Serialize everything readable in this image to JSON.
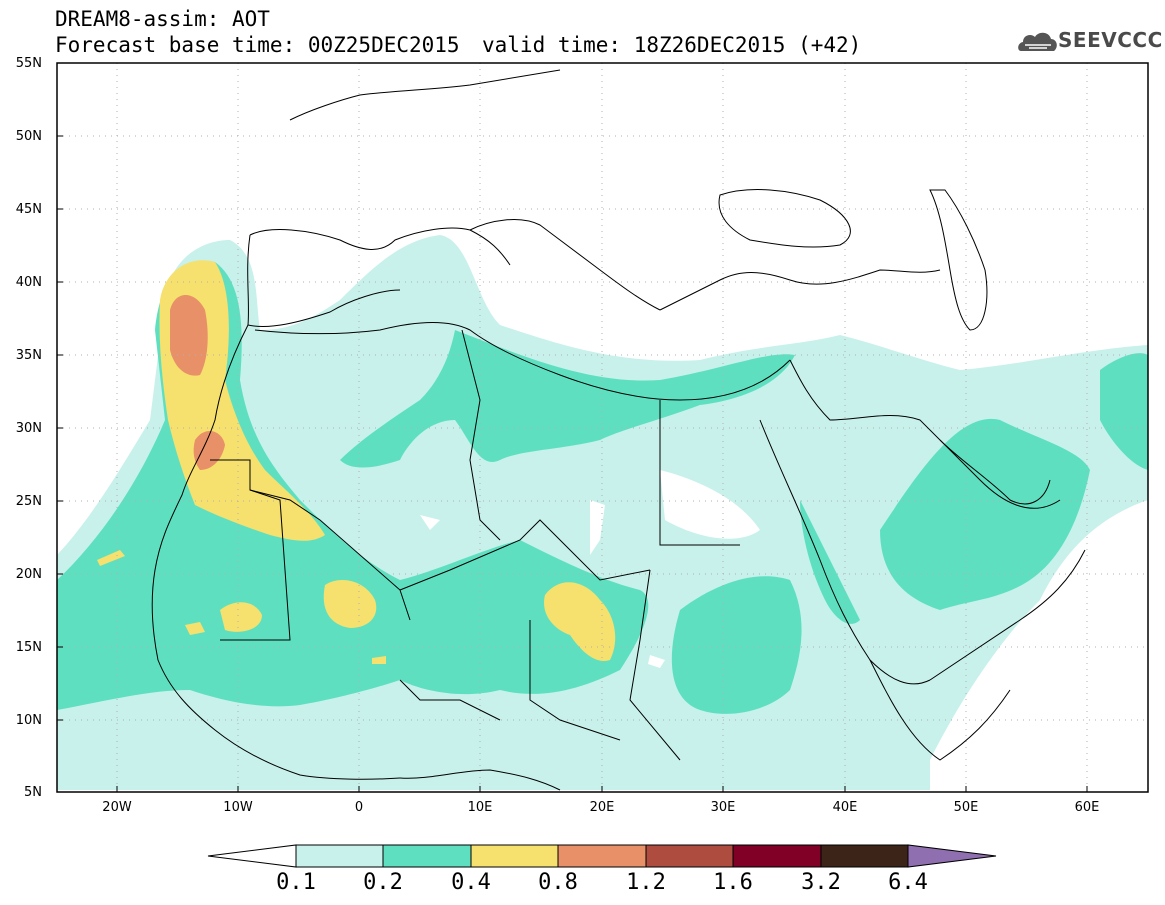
{
  "header": {
    "title_line1": "DREAM8-assim: AOT",
    "title_line2_left": "Forecast base time: 00Z25DEC2015",
    "title_line2_right": "valid time: 18Z26DEC2015 (+42)",
    "logo_text": "SEEVCCC"
  },
  "lat_labels": [
    "55N",
    "50N",
    "45N",
    "40N",
    "35N",
    "30N",
    "25N",
    "20N",
    "15N",
    "10N",
    "5N"
  ],
  "lon_labels": [
    "20W",
    "10W",
    "0",
    "10E",
    "20E",
    "30E",
    "40E",
    "50E",
    "60E"
  ],
  "colorbar": {
    "labels": [
      "0.1",
      "0.2",
      "0.4",
      "0.8",
      "1.2",
      "1.6",
      "3.2",
      "6.4"
    ],
    "colors": [
      "#ffffff",
      "#c8f1ec",
      "#5ee0c0",
      "#f6e06e",
      "#e89068",
      "#ae4c40",
      "#800026",
      "#3c2418",
      "#8f6fb0"
    ]
  },
  "legend_colors": {
    "aot_0.1_0.2": "#c8f1ec",
    "aot_0.2_0.4": "#5ee0c0",
    "aot_0.4_0.8": "#f6e06e",
    "aot_0.8_1.2": "#e89068",
    "aot_1.2_1.6": "#ae4c40"
  }
}
